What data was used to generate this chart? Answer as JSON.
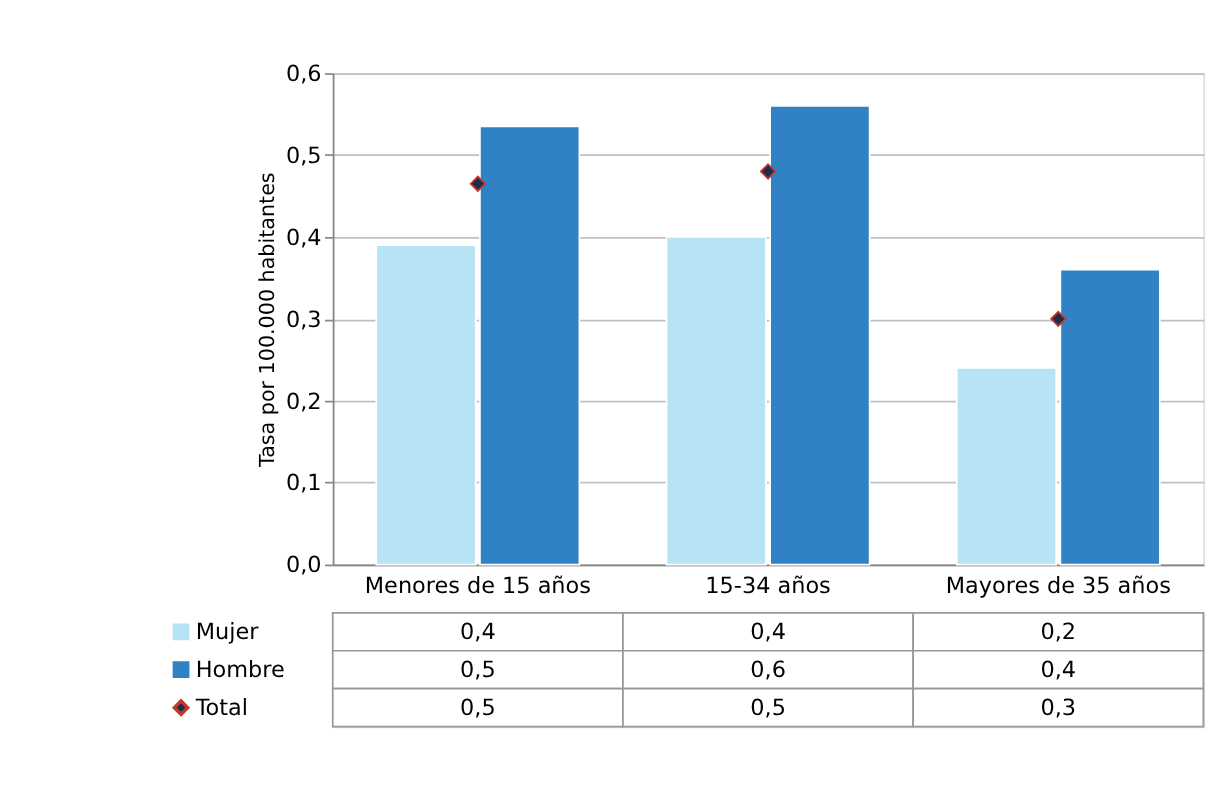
{
  "chart_data": {
    "type": "bar",
    "ylabel": "Tasa por 100.000 habitantes",
    "categories": [
      "Menores de 15 años",
      "15-34 años",
      "Mayores de 35 años"
    ],
    "series": [
      {
        "name": "Mujer",
        "color": "#b7e4f4",
        "values": [
          0.39,
          0.4,
          0.24
        ],
        "value_labels": [
          "0,4",
          "0,4",
          "0,2"
        ]
      },
      {
        "name": "Hombre",
        "color": "#3182c4",
        "values": [
          0.535,
          0.56,
          0.36
        ],
        "value_labels": [
          "0,5",
          "0,6",
          "0,4"
        ]
      },
      {
        "name": "Total",
        "type": "scatter",
        "marker": "diamond",
        "color": "#1f2d4a",
        "values": [
          0.465,
          0.48,
          0.3
        ],
        "value_labels": [
          "0,5",
          "0,5",
          "0,3"
        ]
      }
    ],
    "ylim": [
      0,
      0.6
    ],
    "yticks": [
      {
        "value": 0,
        "label": "0,0"
      },
      {
        "value": 0.1,
        "label": "0,1"
      },
      {
        "value": 0.2,
        "label": "0,2"
      },
      {
        "value": 0.3,
        "label": "0,3"
      },
      {
        "value": 0.4,
        "label": "0,4"
      },
      {
        "value": 0.5,
        "label": "0,5"
      },
      {
        "value": 0.6,
        "label": "0,6"
      }
    ],
    "grid": "y",
    "legend": "bottom"
  }
}
